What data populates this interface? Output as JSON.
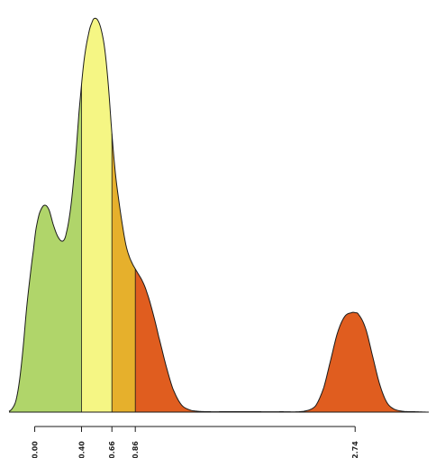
{
  "chart_data": {
    "type": "area",
    "title": "",
    "xlabel": "",
    "ylabel": "",
    "xlim": [
      -0.22,
      3.37
    ],
    "ylim": [
      0,
      1.0
    ],
    "grid": false,
    "legend": "none",
    "series": [
      {
        "x": [
          -0.22,
          -0.19,
          -0.16,
          -0.13,
          -0.1,
          -0.07,
          -0.04,
          -0.01,
          0.01,
          0.04,
          0.08,
          0.12,
          0.16,
          0.2,
          0.24,
          0.27,
          0.31,
          0.35,
          0.38,
          0.42,
          0.46,
          0.49,
          0.51,
          0.54,
          0.57,
          0.6,
          0.63,
          0.66,
          0.69,
          0.72,
          0.75,
          0.78,
          0.81,
          0.84,
          0.88,
          0.92,
          0.96,
          1.01,
          1.06,
          1.12,
          1.18,
          1.25,
          1.32,
          1.4,
          1.5,
          1.6,
          1.7,
          1.9,
          2.1,
          2.3,
          2.4,
          2.47,
          2.53,
          2.59,
          2.65,
          2.71,
          2.74,
          2.77,
          2.83,
          2.89,
          2.95,
          3.01,
          3.07,
          3.15,
          3.25,
          3.37
        ],
        "y": [
          0.002,
          0.01,
          0.03,
          0.08,
          0.16,
          0.26,
          0.34,
          0.41,
          0.46,
          0.5,
          0.52,
          0.51,
          0.47,
          0.44,
          0.43,
          0.45,
          0.52,
          0.64,
          0.76,
          0.88,
          0.95,
          0.98,
          0.99,
          0.985,
          0.96,
          0.91,
          0.82,
          0.7,
          0.6,
          0.53,
          0.47,
          0.42,
          0.39,
          0.37,
          0.35,
          0.33,
          0.3,
          0.25,
          0.19,
          0.12,
          0.06,
          0.02,
          0.006,
          0.002,
          0.001,
          0.001,
          0.001,
          0.001,
          0.001,
          0.002,
          0.015,
          0.06,
          0.13,
          0.2,
          0.24,
          0.25,
          0.25,
          0.245,
          0.21,
          0.14,
          0.07,
          0.025,
          0.008,
          0.002,
          0.001,
          0.0
        ]
      }
    ],
    "bands": [
      {
        "from": -0.22,
        "to": 0.4,
        "color": "#b0d56a"
      },
      {
        "from": 0.4,
        "to": 0.66,
        "color": "#f5f684"
      },
      {
        "from": 0.66,
        "to": 0.86,
        "color": "#e6b02c"
      },
      {
        "from": 0.86,
        "to": 3.37,
        "color": "#e05d1f"
      }
    ],
    "axis_ticks": [
      0.0,
      0.4,
      0.66,
      0.86,
      2.74
    ],
    "tick_labels": [
      "0.00",
      "0.40",
      "0.66",
      "0.86",
      "2.74"
    ],
    "line_color": "#1a1a1a"
  }
}
